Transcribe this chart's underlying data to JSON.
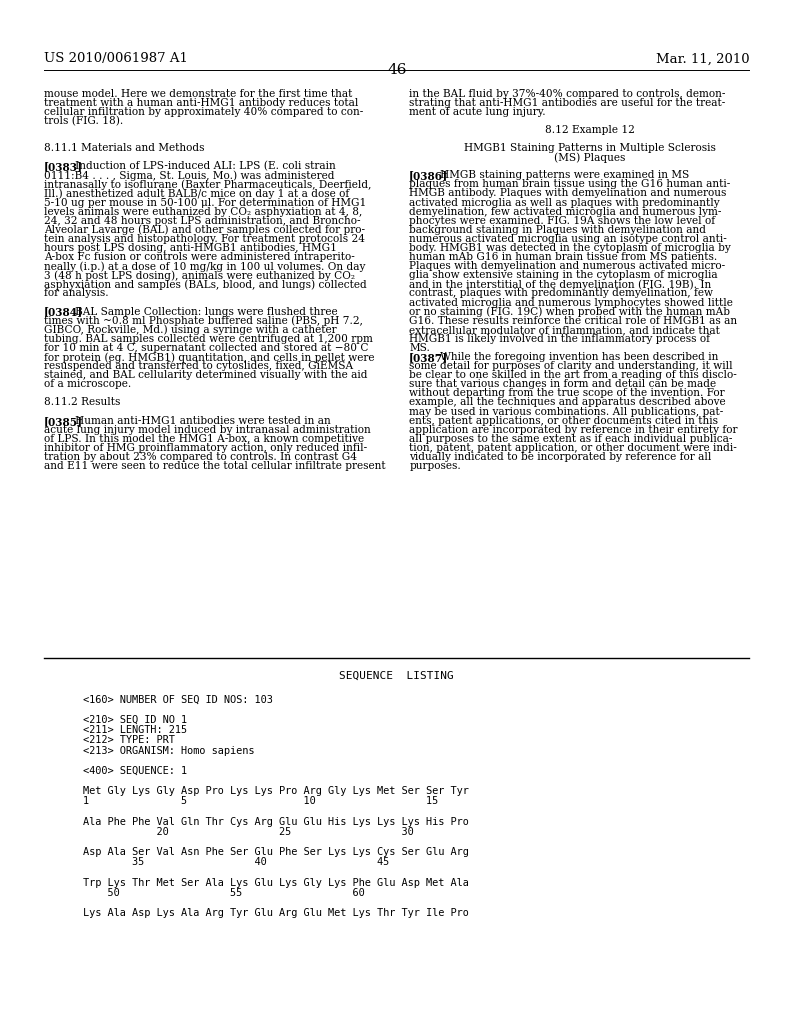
{
  "background_color": "#ffffff",
  "header_left": "US 2010/0061987 A1",
  "header_right": "Mar. 11, 2010",
  "page_number": "46",
  "left_col": [
    {
      "text": "mouse model. Here we demonstrate for the first time that",
      "indent": 0,
      "bold_prefix": ""
    },
    {
      "text": "treatment with a human anti-HMG1 antibody reduces total",
      "indent": 0,
      "bold_prefix": ""
    },
    {
      "text": "cellular infiltration by approximately 40% compared to con-",
      "indent": 0,
      "bold_prefix": ""
    },
    {
      "text": "trols (FIG. 18).",
      "indent": 0,
      "bold_prefix": ""
    },
    {
      "text": "",
      "indent": 0,
      "bold_prefix": ""
    },
    {
      "text": "",
      "indent": 0,
      "bold_prefix": ""
    },
    {
      "text": "8.11.1 Materials and Methods",
      "indent": 0,
      "bold_prefix": ""
    },
    {
      "text": "",
      "indent": 0,
      "bold_prefix": ""
    },
    {
      "text": "Induction of LPS-induced ALI: LPS (E. coli strain",
      "indent": 0,
      "bold_prefix": "[0383]"
    },
    {
      "text": "0111:B4 . . . , Sigma, St. Louis, Mo.) was administered",
      "indent": 0,
      "bold_prefix": ""
    },
    {
      "text": "intranasally to isoflurane (Baxter Pharmaceuticals, Deerfield,",
      "indent": 0,
      "bold_prefix": ""
    },
    {
      "text": "Ill.) anesthetized adult BALB/c mice on day 1 at a dose of",
      "indent": 0,
      "bold_prefix": ""
    },
    {
      "text": "5-10 ug per mouse in 50-100 μl. For determination of HMG1",
      "indent": 0,
      "bold_prefix": ""
    },
    {
      "text": "levels animals were euthanized by CO₂ asphyxiation at 4, 8,",
      "indent": 0,
      "bold_prefix": ""
    },
    {
      "text": "24, 32 and 48 hours post LPS administration, and Broncho-",
      "indent": 0,
      "bold_prefix": ""
    },
    {
      "text": "Alveolar Lavarge (BAL) and other samples collected for pro-",
      "indent": 0,
      "bold_prefix": ""
    },
    {
      "text": "tein analysis and histopathology. For treatment protocols 24",
      "indent": 0,
      "bold_prefix": ""
    },
    {
      "text": "hours post LPS dosing, anti-HMGB1 antibodies, HMG1",
      "indent": 0,
      "bold_prefix": ""
    },
    {
      "text": "A-box Fc fusion or controls were administered intraperito-",
      "indent": 0,
      "bold_prefix": ""
    },
    {
      "text": "neally (i.p.) at a dose of 10 mg/kg in 100 ul volumes. On day",
      "indent": 0,
      "bold_prefix": ""
    },
    {
      "text": "3 (48 h post LPS dosing), animals were euthanized by CO₂",
      "indent": 0,
      "bold_prefix": ""
    },
    {
      "text": "asphyxiation and samples (BALs, blood, and lungs) collected",
      "indent": 0,
      "bold_prefix": ""
    },
    {
      "text": "for analysis.",
      "indent": 0,
      "bold_prefix": ""
    },
    {
      "text": "",
      "indent": 0,
      "bold_prefix": ""
    },
    {
      "text": "BAL Sample Collection: lungs were flushed three",
      "indent": 0,
      "bold_prefix": "[0384]"
    },
    {
      "text": "times with ~0.8 ml Phosphate buffered saline (PBS, pH 7.2,",
      "indent": 0,
      "bold_prefix": ""
    },
    {
      "text": "GIBCO, Rockville, Md.) using a syringe with a catheter",
      "indent": 0,
      "bold_prefix": ""
    },
    {
      "text": "tubing. BAL samples collected were centrifuged at 1,200 rpm",
      "indent": 0,
      "bold_prefix": ""
    },
    {
      "text": "for 10 min at 4 C, supernatant collected and stored at −80 C",
      "indent": 0,
      "bold_prefix": ""
    },
    {
      "text": "for protein (eg. HMGB1) quantitation, and cells in pellet were",
      "indent": 0,
      "bold_prefix": ""
    },
    {
      "text": "resuspended and transferred to cytoslides, fixed, GiEMSA",
      "indent": 0,
      "bold_prefix": ""
    },
    {
      "text": "stained, and BAL cellularity determined visually with the aid",
      "indent": 0,
      "bold_prefix": ""
    },
    {
      "text": "of a microscope.",
      "indent": 0,
      "bold_prefix": ""
    },
    {
      "text": "",
      "indent": 0,
      "bold_prefix": ""
    },
    {
      "text": "8.11.2 Results",
      "indent": 0,
      "bold_prefix": ""
    },
    {
      "text": "",
      "indent": 0,
      "bold_prefix": ""
    },
    {
      "text": "Human anti-HMG1 antibodies were tested in an",
      "indent": 0,
      "bold_prefix": "[0385]"
    },
    {
      "text": "acute lung injury model induced by intranasal administration",
      "indent": 0,
      "bold_prefix": ""
    },
    {
      "text": "of LPS. In this model the HMG1 A-box, a known competitive",
      "indent": 0,
      "bold_prefix": ""
    },
    {
      "text": "inhibitor of HMG proinflammatory action, only reduced infil-",
      "indent": 0,
      "bold_prefix": ""
    },
    {
      "text": "tration by about 23% compared to controls. In contrast G4",
      "indent": 0,
      "bold_prefix": ""
    },
    {
      "text": "and E11 were seen to reduce the total cellular infiltrate present",
      "indent": 0,
      "bold_prefix": ""
    }
  ],
  "right_col": [
    {
      "text": "in the BAL fluid by 37%-40% compared to controls, demon-",
      "align": "left"
    },
    {
      "text": "strating that anti-HMG1 antibodies are useful for the treat-",
      "align": "left"
    },
    {
      "text": "ment of acute lung injury.",
      "align": "left"
    },
    {
      "text": "",
      "align": "left"
    },
    {
      "text": "8.12 Example 12",
      "align": "center"
    },
    {
      "text": "",
      "align": "left"
    },
    {
      "text": "HMGB1 Staining Patterns in Multiple Sclerosis",
      "align": "center"
    },
    {
      "text": "(MS) Plaques",
      "align": "center"
    },
    {
      "text": "",
      "align": "left"
    },
    {
      "text": "HMGB staining patterns were examined in MS",
      "align": "left",
      "bold_prefix": "[0386]"
    },
    {
      "text": "plaques from human brain tissue using the G16 human anti-",
      "align": "left",
      "bold_prefix": ""
    },
    {
      "text": "HMGB antibody. Plaques with demyelination and numerous",
      "align": "left",
      "bold_prefix": ""
    },
    {
      "text": "activated microglia as well as plaques with predominantly",
      "align": "left",
      "bold_prefix": ""
    },
    {
      "text": "demyelination, few activated microglia and numerous lym-",
      "align": "left",
      "bold_prefix": ""
    },
    {
      "text": "phocytes were examined. FIG. 19A shows the low level of",
      "align": "left",
      "bold_prefix": ""
    },
    {
      "text": "background staining in Plaques with demyelination and",
      "align": "left",
      "bold_prefix": ""
    },
    {
      "text": "numerous activated microglia using an isotype control anti-",
      "align": "left",
      "bold_prefix": ""
    },
    {
      "text": "body. HMGB1 was detected in the cytoplasm of microglia by",
      "align": "left",
      "bold_prefix": ""
    },
    {
      "text": "human mAb G16 in human brain tissue from MS patients.",
      "align": "left",
      "bold_prefix": ""
    },
    {
      "text": "Plaques with demyelination and numerous activated micro-",
      "align": "left",
      "bold_prefix": ""
    },
    {
      "text": "glia show extensive staining in the cytoplasm of microglia",
      "align": "left",
      "bold_prefix": ""
    },
    {
      "text": "and in the interstitial of the demyelination (FIG. 19B). In",
      "align": "left",
      "bold_prefix": ""
    },
    {
      "text": "contrast, plaques with predominantly demyelination, few",
      "align": "left",
      "bold_prefix": ""
    },
    {
      "text": "activated microglia and numerous lymphocytes showed little",
      "align": "left",
      "bold_prefix": ""
    },
    {
      "text": "or no staining (FIG. 19C) when probed with the human mAb",
      "align": "left",
      "bold_prefix": ""
    },
    {
      "text": "G16. These results reinforce the critical role of HMGB1 as an",
      "align": "left",
      "bold_prefix": ""
    },
    {
      "text": "extracellular modulator of inflammation, and indicate that",
      "align": "left",
      "bold_prefix": ""
    },
    {
      "text": "HMGB1 is likely involved in the inflammatory process of",
      "align": "left",
      "bold_prefix": ""
    },
    {
      "text": "MS.",
      "align": "left",
      "bold_prefix": ""
    },
    {
      "text": "While the foregoing invention has been described in",
      "align": "left",
      "bold_prefix": "[0387]"
    },
    {
      "text": "some detail for purposes of clarity and understanding, it will",
      "align": "left",
      "bold_prefix": ""
    },
    {
      "text": "be clear to one skilled in the art from a reading of this disclo-",
      "align": "left",
      "bold_prefix": ""
    },
    {
      "text": "sure that various changes in form and detail can be made",
      "align": "left",
      "bold_prefix": ""
    },
    {
      "text": "without departing from the true scope of the invention. For",
      "align": "left",
      "bold_prefix": ""
    },
    {
      "text": "example, all the techniques and apparatus described above",
      "align": "left",
      "bold_prefix": ""
    },
    {
      "text": "may be used in various combinations. All publications, pat-",
      "align": "left",
      "bold_prefix": ""
    },
    {
      "text": "ents, patent applications, or other documents cited in this",
      "align": "left",
      "bold_prefix": ""
    },
    {
      "text": "application are incorporated by reference in their entirety for",
      "align": "left",
      "bold_prefix": ""
    },
    {
      "text": "all purposes to the same extent as if each individual publica-",
      "align": "left",
      "bold_prefix": ""
    },
    {
      "text": "tion, patent, patent application, or other document were indi-",
      "align": "left",
      "bold_prefix": ""
    },
    {
      "text": "vidually indicated to be incorporated by reference for all",
      "align": "left",
      "bold_prefix": ""
    },
    {
      "text": "purposes.",
      "align": "left",
      "bold_prefix": ""
    }
  ],
  "seq_title": "SEQUENCE  LISTING",
  "seq_lines": [
    "",
    "<160> NUMBER OF SEQ ID NOS: 103",
    "",
    "<210> SEQ ID NO 1",
    "<211> LENGTH: 215",
    "<212> TYPE: PRT",
    "<213> ORGANISM: Homo sapiens",
    "",
    "<400> SEQUENCE: 1",
    "",
    "Met Gly Lys Gly Asp Pro Lys Lys Pro Arg Gly Lys Met Ser Ser Tyr",
    "1               5                   10                  15",
    "",
    "Ala Phe Phe Val Gln Thr Cys Arg Glu Glu His Lys Lys Lys His Pro",
    "            20                  25                  30",
    "",
    "Asp Ala Ser Val Asn Phe Ser Glu Phe Ser Lys Lys Cys Ser Glu Arg",
    "        35                  40                  45",
    "",
    "Trp Lys Thr Met Ser Ala Lys Glu Lys Gly Lys Phe Glu Asp Met Ala",
    "    50                  55                  60",
    "",
    "Lys Ala Asp Lys Ala Arg Tyr Glu Arg Glu Met Lys Thr Tyr Ile Pro"
  ]
}
